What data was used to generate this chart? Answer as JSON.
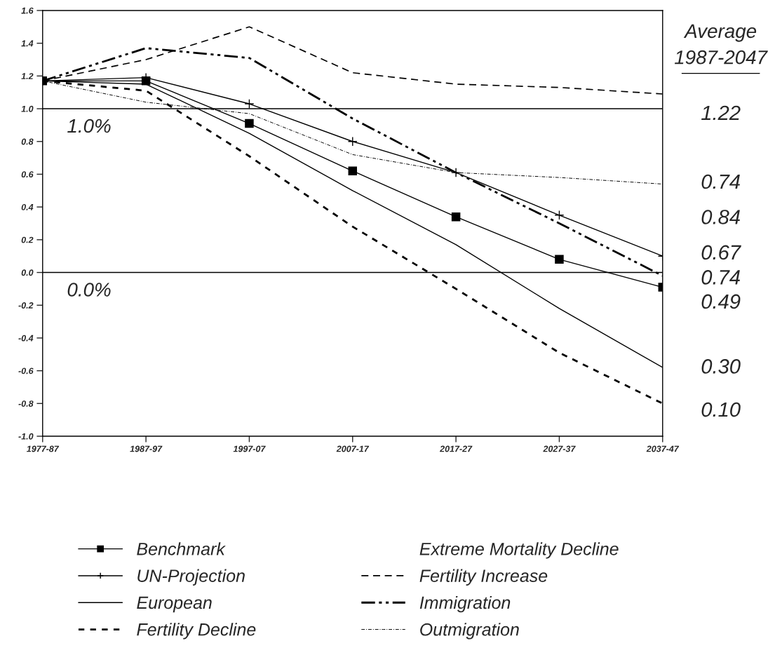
{
  "chart_data": {
    "type": "line",
    "categories": [
      "1977-87",
      "1987-97",
      "1997-07",
      "2007-17",
      "2017-27",
      "2027-37",
      "2037-47"
    ],
    "series": [
      {
        "name": "Benchmark",
        "color": "#000000",
        "marker": "square",
        "line_style": "solid",
        "values": [
          1.17,
          1.17,
          0.91,
          0.62,
          0.34,
          0.08,
          -0.09
        ]
      },
      {
        "name": "UN-Projection",
        "color": "#000000",
        "marker": "cross",
        "line_style": "solid",
        "values": [
          1.17,
          1.19,
          1.03,
          0.8,
          0.61,
          0.35,
          0.1
        ]
      },
      {
        "name": "European",
        "color": "#000000",
        "marker": "none",
        "line_style": "solid",
        "values": [
          1.17,
          1.15,
          0.85,
          0.5,
          0.17,
          -0.22,
          -0.58
        ]
      },
      {
        "name": "Fertility Decline",
        "color": "#000000",
        "marker": "none",
        "line_style": "dotted",
        "values": [
          1.17,
          1.11,
          0.71,
          0.28,
          -0.1,
          -0.49,
          -0.8
        ]
      },
      {
        "name": "Extreme Mortality Decline",
        "color": "#000000",
        "marker": "none",
        "line_style": "none",
        "values": [
          null,
          null,
          null,
          null,
          null,
          null,
          null
        ]
      },
      {
        "name": "Fertility Increase",
        "color": "#000000",
        "marker": "none",
        "line_style": "dashed",
        "values": [
          1.17,
          1.3,
          1.5,
          1.22,
          1.15,
          1.13,
          1.09
        ]
      },
      {
        "name": "Immigration",
        "color": "#000000",
        "marker": "none",
        "line_style": "dashdotdot",
        "values": [
          1.17,
          1.37,
          1.31,
          0.94,
          0.61,
          0.3,
          -0.02
        ]
      },
      {
        "name": "Outmigration",
        "color": "#000000",
        "marker": "none",
        "line_style": "dashdot",
        "values": [
          1.17,
          1.04,
          0.97,
          0.72,
          0.61,
          0.58,
          0.54
        ]
      }
    ],
    "ylim": [
      -1.0,
      1.6
    ],
    "yticks": [
      {
        "value": -1.0,
        "label": "-1.0"
      },
      {
        "value": -0.8,
        "label": "-0.8"
      },
      {
        "value": -0.6,
        "label": "-0.6"
      },
      {
        "value": -0.4,
        "label": "-0.4"
      },
      {
        "value": -0.2,
        "label": "-0.2"
      },
      {
        "value": 0.0,
        "label": "0.0"
      },
      {
        "value": 0.2,
        "label": "0.2"
      },
      {
        "value": 0.4,
        "label": "0.4"
      },
      {
        "value": 0.6,
        "label": "0.6"
      },
      {
        "value": 0.8,
        "label": "0.8"
      },
      {
        "value": 1.0,
        "label": "1.0"
      },
      {
        "value": 1.2,
        "label": "1.2"
      },
      {
        "value": 1.4,
        "label": "1.4"
      },
      {
        "value": 1.6,
        "label": "1.6"
      }
    ],
    "ref_lines": [
      {
        "axis": "y",
        "value": 1.0,
        "label": "1.0%",
        "color": "#000000",
        "line_style": "solid"
      },
      {
        "axis": "y",
        "value": 0.0,
        "label": "0.0%",
        "color": "#000000",
        "line_style": "solid"
      }
    ],
    "annotations": [
      "Average",
      "1987-2047",
      "1.22",
      "0.74",
      "0.84",
      "0.67",
      "0.74",
      "0.49",
      "0.30",
      "0.10"
    ],
    "grid": false,
    "legend": "bottom"
  }
}
